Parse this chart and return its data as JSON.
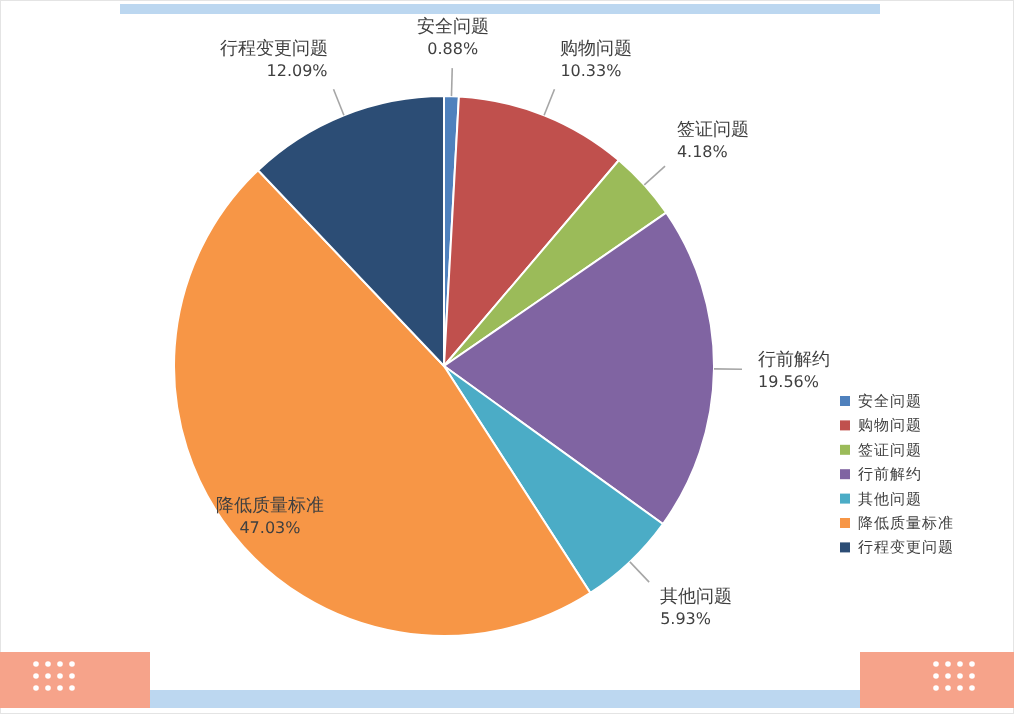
{
  "chart_data": {
    "type": "pie",
    "categories": [
      "安全问题",
      "购物问题",
      "签证问题",
      "行前解约",
      "其他问题",
      "降低质量标准",
      "行程变更问题"
    ],
    "values": [
      0.88,
      10.33,
      4.18,
      19.56,
      5.93,
      47.03,
      12.09
    ],
    "value_labels": [
      "0.88%",
      "10.33%",
      "4.18%",
      "19.56%",
      "5.93%",
      "47.03%",
      "12.09%"
    ],
    "colors": [
      "#4f81bd",
      "#c0504d",
      "#9bbb59",
      "#8064a2",
      "#4bacc6",
      "#f79646",
      "#2c4d75"
    ],
    "legend": "right"
  }
}
